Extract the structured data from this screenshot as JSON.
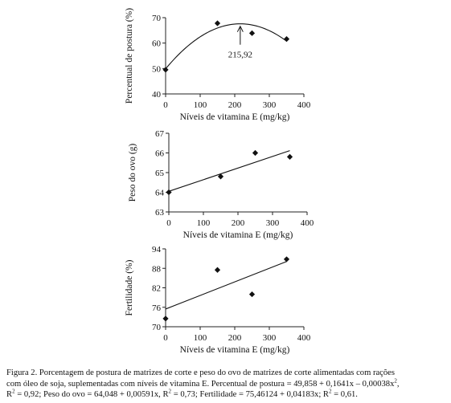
{
  "chart_data": [
    {
      "type": "scatter",
      "xlabel": "Níveis de vitamina E (mg/kg)",
      "ylabel": "Percentual de postura (%)",
      "xlim": [
        0,
        400
      ],
      "ylim": [
        40,
        70
      ],
      "xticks": [
        "0",
        "100",
        "200",
        "300",
        "400"
      ],
      "yticks": [
        "40",
        "50",
        "60",
        "70"
      ],
      "points": [
        [
          0,
          49.5
        ],
        [
          150,
          67.8
        ],
        [
          250,
          63.9
        ],
        [
          350,
          61.6
        ]
      ],
      "fit": "quadratic",
      "coef": [
        49.858,
        0.1641,
        -0.00038
      ],
      "annotation": {
        "text": "215,92",
        "x": 215.92
      }
    },
    {
      "type": "scatter",
      "xlabel": "Níveis de vitamina E (mg/kg)",
      "ylabel": "Peso do ovo (g)",
      "xlim": [
        0,
        400
      ],
      "ylim": [
        63,
        67
      ],
      "xticks": [
        "0",
        "100",
        "200",
        "300",
        "400"
      ],
      "yticks": [
        "63",
        "64",
        "65",
        "66",
        "67"
      ],
      "points": [
        [
          0,
          64.0
        ],
        [
          150,
          64.8
        ],
        [
          250,
          66.0
        ],
        [
          350,
          65.8
        ]
      ],
      "fit": "linear",
      "coef": [
        64.048,
        0.00591
      ]
    },
    {
      "type": "scatter",
      "xlabel": "Níveis de vitamina E (mg/kg)",
      "ylabel": "Fertilidade (%)",
      "xlim": [
        0,
        400
      ],
      "ylim": [
        70,
        94
      ],
      "xticks": [
        "0",
        "100",
        "200",
        "300",
        "400"
      ],
      "yticks": [
        "70",
        "76",
        "82",
        "88",
        "94"
      ],
      "points": [
        [
          0,
          72.5
        ],
        [
          150,
          87.5
        ],
        [
          250,
          80.0
        ],
        [
          350,
          90.8
        ]
      ],
      "fit": "linear",
      "coef": [
        75.46124,
        0.04183
      ]
    }
  ],
  "caption": {
    "line1": "Figura 2. Porcentagem de postura de matrizes de corte e peso do ovo de matrizes de corte alimentadas com rações",
    "line2a": "com óleo de soja, suplementadas com níveis de vitamina E. Percentual de postura = 49,858 + 0,1641x – 0,00038x",
    "line2b": ",",
    "line3a": "R",
    "line3b": " = 0,92; Peso do ovo = 64,048 + 0,00591x, R",
    "line3c": " = 0,73; Fertilidade = 75,46124 + 0,04183x; R",
    "line3d": " = 0,61.",
    "sup": "2"
  }
}
